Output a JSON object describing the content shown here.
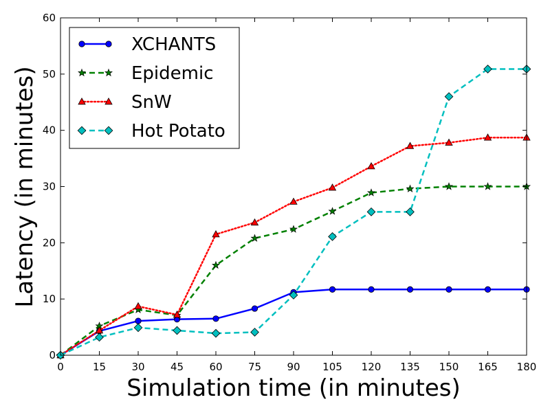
{
  "chart_data": {
    "type": "line",
    "title": "",
    "xlabel": "Simulation time (in minutes)",
    "ylabel": "Latency (in minutes)",
    "xlim": [
      0,
      180
    ],
    "ylim": [
      0,
      60
    ],
    "x_ticks": [
      0,
      15,
      30,
      45,
      60,
      75,
      90,
      105,
      120,
      135,
      150,
      165,
      180
    ],
    "y_ticks": [
      0,
      10,
      20,
      30,
      40,
      50,
      60
    ],
    "grid": false,
    "legend_position": "top-left",
    "x": [
      0,
      15,
      30,
      45,
      60,
      75,
      90,
      105,
      120,
      135,
      150,
      165,
      180
    ],
    "series": [
      {
        "name": "XCHANTS",
        "color": "#0000ff",
        "line_style": "solid",
        "marker": "circle",
        "values": [
          0,
          4.3,
          6.1,
          6.4,
          6.5,
          8.3,
          11.2,
          11.7,
          11.7,
          11.7,
          11.7,
          11.7,
          11.7
        ]
      },
      {
        "name": "Epidemic",
        "color": "#008000",
        "line_style": "dashed",
        "marker": "star",
        "values": [
          0,
          5.2,
          8.1,
          7.1,
          16.0,
          20.8,
          22.4,
          25.6,
          28.9,
          29.6,
          30.0,
          30.0,
          30.0
        ]
      },
      {
        "name": "SnW",
        "color": "#ff0000",
        "line_style": "dotted",
        "marker": "triangle",
        "values": [
          0,
          4.4,
          8.7,
          7.2,
          21.5,
          23.6,
          27.3,
          29.8,
          33.6,
          37.2,
          37.8,
          38.7,
          38.7
        ]
      },
      {
        "name": "Hot Potato",
        "color": "#00bfbf",
        "line_style": "dashed",
        "marker": "diamond",
        "values": [
          0,
          3.2,
          4.9,
          4.4,
          3.9,
          4.1,
          10.7,
          21.1,
          25.5,
          25.5,
          46.0,
          50.9,
          50.9
        ]
      }
    ]
  }
}
